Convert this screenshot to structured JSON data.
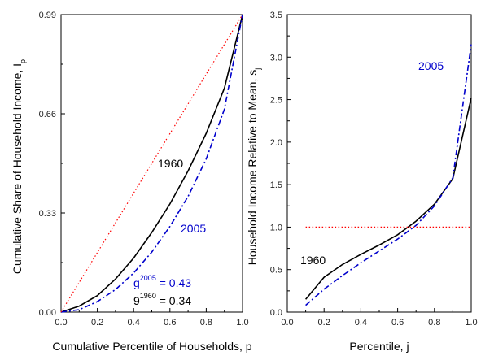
{
  "chart_data": [
    {
      "type": "line",
      "xlabel": "Cumulative Percentile of Households, p",
      "ylabel_main": "Cumulative Share of Household Income, I",
      "ylabel_sub": "p",
      "xlim": [
        0,
        1
      ],
      "ylim": [
        0,
        0.99
      ],
      "x_ticks": [
        "0.0",
        "0.2",
        "0.4",
        "0.6",
        "0.8",
        "1.0"
      ],
      "y_ticks": [
        "0.00",
        "0.33",
        "0.66",
        "0.99"
      ],
      "annotations": {
        "label_1960": "1960",
        "label_2005": "2005",
        "g2005_base": "g",
        "g2005_sup": "2005",
        "g2005_rest": " = 0.43",
        "g1960_base": "9",
        "g1960_sup": "1960",
        "g1960_rest": " = 0.34"
      },
      "series": [
        {
          "name": "1960",
          "color": "#000000",
          "style": "solid",
          "x": [
            0,
            0.1,
            0.2,
            0.3,
            0.4,
            0.5,
            0.6,
            0.7,
            0.8,
            0.9,
            1.0
          ],
          "y": [
            0,
            0.02,
            0.055,
            0.11,
            0.18,
            0.265,
            0.36,
            0.47,
            0.595,
            0.745,
            0.99
          ]
        },
        {
          "name": "2005",
          "color": "#0000cc",
          "style": "dashdot",
          "x": [
            0,
            0.1,
            0.2,
            0.3,
            0.4,
            0.5,
            0.6,
            0.7,
            0.8,
            0.9,
            1.0
          ],
          "y": [
            0,
            0.008,
            0.035,
            0.075,
            0.13,
            0.2,
            0.285,
            0.385,
            0.51,
            0.675,
            0.99
          ]
        },
        {
          "name": "",
          "color": "#ff0000",
          "style": "dotted",
          "x": [
            0,
            1.0
          ],
          "y": [
            0,
            0.99
          ]
        }
      ]
    },
    {
      "type": "line",
      "xlabel": "Percentile, j",
      "ylabel_main": "Household Income Relative to Mean, s",
      "ylabel_sub": "j",
      "xlim": [
        0,
        1
      ],
      "ylim": [
        0,
        3.5
      ],
      "x_ticks": [
        "0.0",
        "0.2",
        "0.4",
        "0.6",
        "0.8",
        "1.0"
      ],
      "y_ticks": [
        "0.0",
        "0.5",
        "1.0",
        "1.5",
        "2.0",
        "2.5",
        "3.0",
        "3.5"
      ],
      "annotations": {
        "label_1960": "1960",
        "label_2005": "2005"
      },
      "series": [
        {
          "name": "1960",
          "color": "#000000",
          "style": "solid",
          "x": [
            0.1,
            0.2,
            0.3,
            0.4,
            0.5,
            0.6,
            0.7,
            0.8,
            0.9,
            1.0
          ],
          "y": [
            0.15,
            0.41,
            0.56,
            0.68,
            0.79,
            0.91,
            1.07,
            1.27,
            1.57,
            2.52
          ]
        },
        {
          "name": "2005",
          "color": "#0000cc",
          "style": "dashdot",
          "x": [
            0.1,
            0.2,
            0.3,
            0.4,
            0.5,
            0.6,
            0.7,
            0.8,
            0.9,
            1.0
          ],
          "y": [
            0.08,
            0.27,
            0.43,
            0.58,
            0.72,
            0.86,
            1.02,
            1.25,
            1.58,
            3.15
          ]
        },
        {
          "name": "",
          "color": "#ff0000",
          "style": "dotted",
          "x": [
            0.1,
            1.0
          ],
          "y": [
            1.0,
            1.0
          ]
        }
      ]
    }
  ]
}
